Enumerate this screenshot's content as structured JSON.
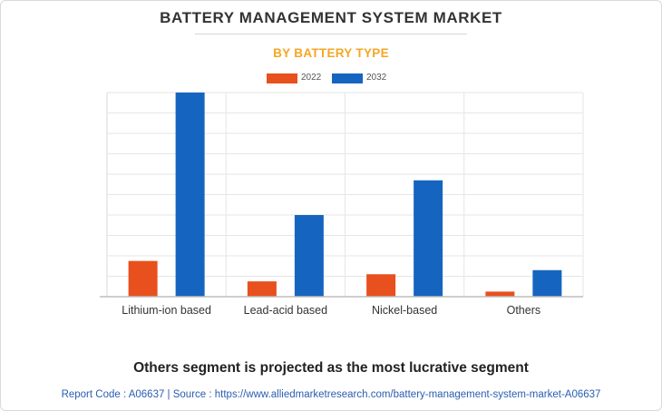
{
  "header": {
    "title": "BATTERY MANAGEMENT SYSTEM MARKET",
    "subtitle": "BY BATTERY TYPE"
  },
  "footer": {
    "headline": "Others segment is projected as the most lucrative segment",
    "source": "Report Code : A06637  |  Source : https://www.alliedmarketresearch.com/battery-management-system-market-A06637"
  },
  "colors": {
    "series_2022": "#e8501e",
    "series_2032": "#1565c0",
    "grid": "#e6e6e6",
    "axis": "#bdbdbd"
  },
  "chart_data": {
    "type": "bar",
    "title": "BATTERY MANAGEMENT SYSTEM MARKET",
    "subtitle": "BY BATTERY TYPE",
    "categories": [
      "Lithium-ion based",
      "Lead-acid based",
      "Nickel-based",
      "Others"
    ],
    "series": [
      {
        "name": "2022",
        "values": [
          17.5,
          7.5,
          11,
          2.5
        ]
      },
      {
        "name": "2032",
        "values": [
          100,
          40,
          57,
          13
        ]
      }
    ],
    "ylim": [
      0,
      100
    ],
    "grid": true,
    "legend": "top-center",
    "xlabel": "",
    "ylabel": ""
  }
}
